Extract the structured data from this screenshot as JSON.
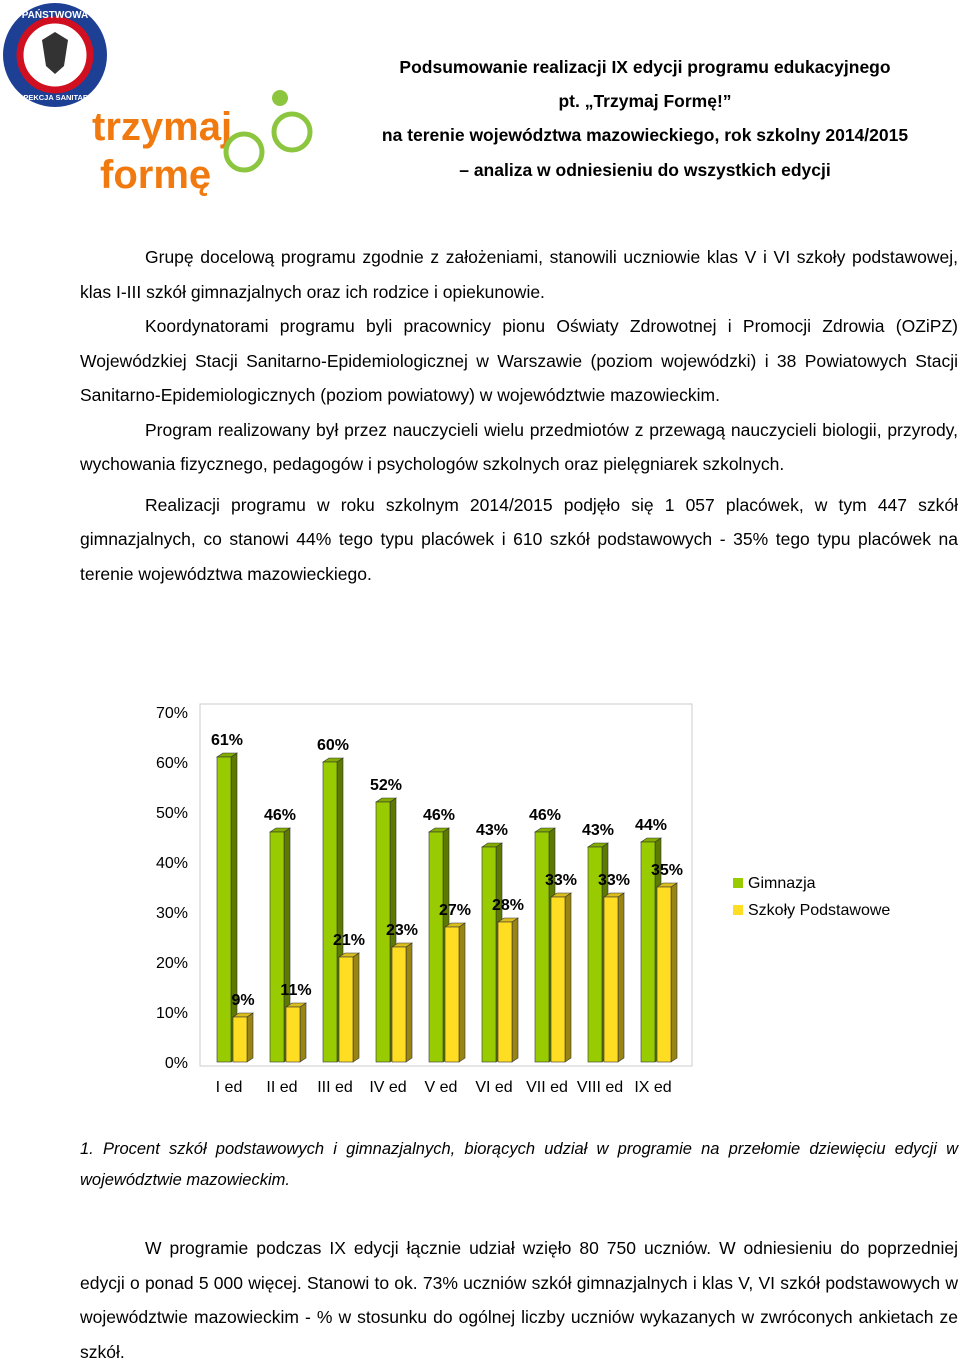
{
  "logo": {
    "ring_top": "PAŃSTWOWA",
    "ring_bottom": "INSPEKCJA SANITARNA",
    "brand_line1": "trzymaj",
    "brand_line2": "formę"
  },
  "header": {
    "lines": [
      "Podsumowanie realizacji IX edycji programu edukacyjnego",
      "pt. „Trzymaj Formę!”",
      "na terenie województwa mazowieckiego, rok szkolny 2014/2015",
      "– analiza w odniesieniu do wszystkich edycji"
    ]
  },
  "body": {
    "paragraphs": [
      "Grupę docelową programu zgodnie z założeniami, stanowili  uczniowie klas V i VI szkoły podstawowej, klas I-III szkół gimnazjalnych oraz ich rodzice i opiekunowie.",
      "Koordynatorami programu byli pracownicy pionu Oświaty Zdrowotnej i Promocji Zdrowia (OZiPZ) Wojewódzkiej Stacji Sanitarno-Epidemiologicznej w Warszawie (poziom wojewódzki) i 38 Powiatowych Stacji Sanitarno-Epidemiologicznych (poziom powiatowy) w województwie mazowieckim.",
      "Program realizowany był przez nauczycieli wielu przedmiotów z przewagą nauczycieli biologii, przyrody, wychowania fizycznego, pedagogów i psychologów szkolnych oraz pielęgniarek szkolnych.",
      "Realizacji programu w roku szkolnym 2014/2015 podjęło się 1 057 placówek, w tym 447 szkół gimnazjalnych, co stanowi 44% tego typu placówek i 610 szkół podstawowych - 35% tego typu placówek na terenie województwa mazowieckiego."
    ]
  },
  "chart_data": {
    "type": "bar",
    "categories": [
      "I ed",
      "II ed",
      "III ed",
      "IV ed",
      "V ed",
      "VI ed",
      "VII ed",
      "VIII ed",
      "IX ed"
    ],
    "series": [
      {
        "name": "Gimnazja",
        "color": "#99cc00",
        "values": [
          61,
          46,
          60,
          52,
          46,
          43,
          46,
          43,
          44
        ],
        "value_labels": [
          "61%",
          "46%",
          "60%",
          "52%",
          "46%",
          "43%",
          "46%",
          "43%",
          "44%"
        ]
      },
      {
        "name": "Szkoły Podstawowe",
        "color": "#ffdd22",
        "values": [
          9,
          11,
          21,
          23,
          27,
          28,
          33,
          33,
          35
        ],
        "value_labels": [
          "9%",
          "11%",
          "21%",
          "23%",
          "27%",
          "28%",
          "33%",
          "33%",
          "35%"
        ]
      }
    ],
    "ylim": [
      0,
      70
    ],
    "yticks": [
      {
        "value": 0,
        "label": "0%"
      },
      {
        "value": 10,
        "label": "10%"
      },
      {
        "value": 20,
        "label": "20%"
      },
      {
        "value": 30,
        "label": "30%"
      },
      {
        "value": 40,
        "label": "40%"
      },
      {
        "value": 50,
        "label": "50%"
      },
      {
        "value": 60,
        "label": "60%"
      },
      {
        "value": 70,
        "label": "70%"
      }
    ],
    "legend": "right"
  },
  "caption": "1. Procent szkół podstawowych i gimnazjalnych, biorących udział w programie na przełomie dziewięciu edycji w województwie mazowieckim.",
  "closing": {
    "paragraphs": [
      "W programie podczas IX edycji łącznie udział wzięło 80 750 uczniów. W odniesieniu do poprzedniej edycji o ponad 5 000 więcej. Stanowi to ok. 73% uczniów szkół gimnazjalnych i klas V, VI szkół podstawowych w województwie mazowieckim - % w stosunku do ogólnej liczby uczniów wykazanych w zwróconych ankietach ze szkół."
    ]
  }
}
